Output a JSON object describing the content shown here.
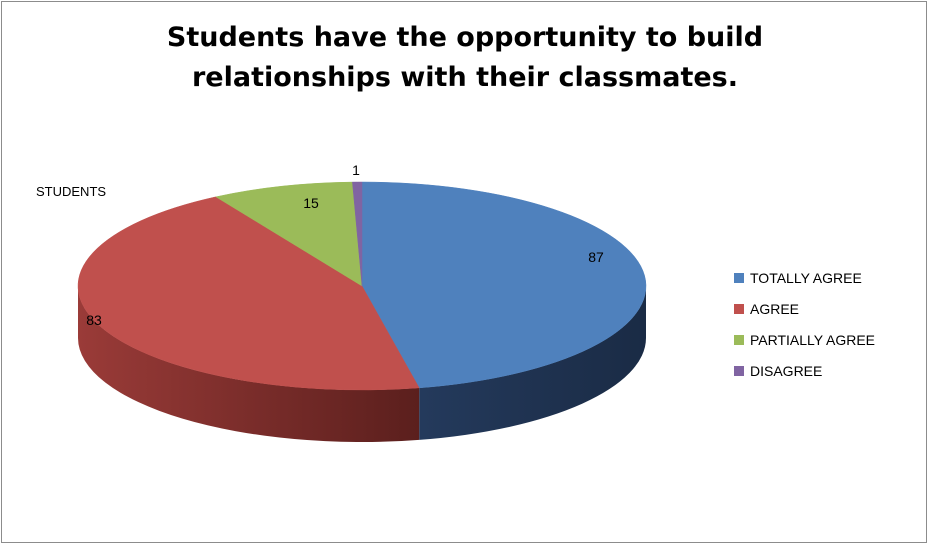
{
  "chart_data": {
    "type": "pie",
    "title_lines": [
      "Students have the opportunity to build",
      "relationships with their classmates."
    ],
    "series_label": "STUDENTS",
    "categories": [
      "TOTALLY AGREE",
      "AGREE",
      "PARTIALLY AGREE",
      "DISAGREE"
    ],
    "values": [
      87,
      83,
      15,
      1
    ],
    "colors": [
      "#4f81bd",
      "#c0504d",
      "#9bbb59",
      "#8064a2"
    ],
    "legend_position": "right",
    "style": "3d"
  }
}
